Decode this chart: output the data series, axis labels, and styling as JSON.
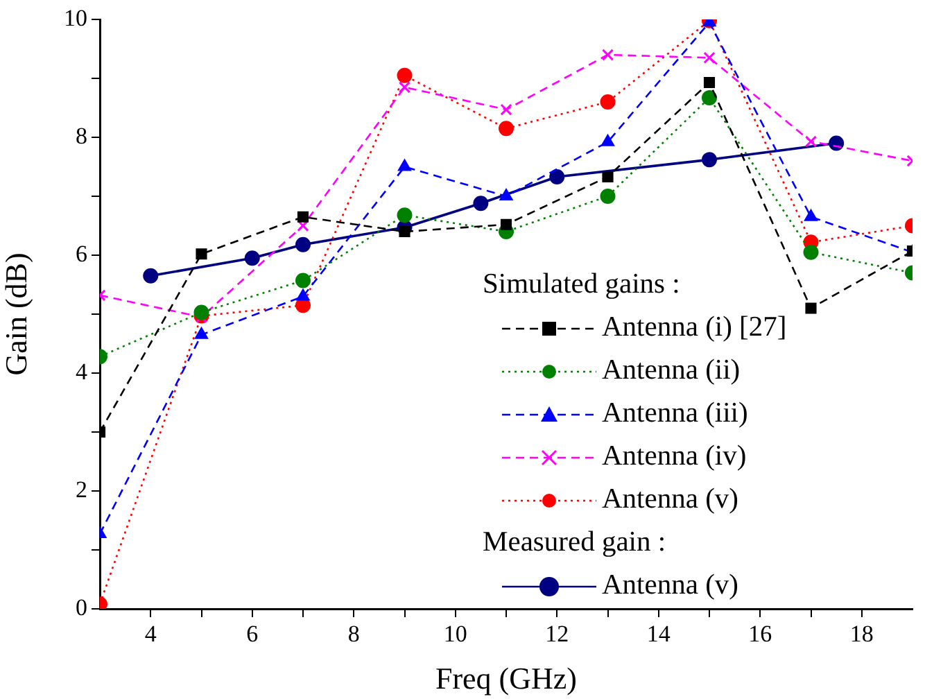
{
  "chart_data": {
    "type": "line",
    "xlabel": "Freq (GHz)",
    "ylabel": "Gain (dB)",
    "legend_title": "Simulated gains :",
    "annotations": [
      "Measured gain :"
    ],
    "xlim": [
      3,
      19
    ],
    "xticks": [
      {
        "value": 4,
        "label": "4"
      },
      {
        "value": 5,
        "label": null
      },
      {
        "value": 6,
        "label": "6"
      },
      {
        "value": 7,
        "label": null
      },
      {
        "value": 8,
        "label": "8"
      },
      {
        "value": 9,
        "label": null
      },
      {
        "value": 10,
        "label": "10"
      },
      {
        "value": 11,
        "label": null
      },
      {
        "value": 12,
        "label": "12"
      },
      {
        "value": 13,
        "label": null
      },
      {
        "value": 14,
        "label": "14"
      },
      {
        "value": 15,
        "label": null
      },
      {
        "value": 16,
        "label": "16"
      },
      {
        "value": 17,
        "label": null
      },
      {
        "value": 18,
        "label": "18"
      }
    ],
    "ylim": [
      0,
      10
    ],
    "yticks": [
      0,
      {
        "value": 1,
        "label": null
      },
      2,
      {
        "value": 3,
        "label": null
      },
      4,
      {
        "value": 5,
        "label": null
      },
      6,
      {
        "value": 7,
        "label": null
      },
      8,
      {
        "value": 9,
        "label": null
      },
      10
    ],
    "grid": false,
    "legend": "bottom right",
    "series": [
      {
        "name": "Antenna (i) [27]",
        "color": "#000000",
        "marker": "square",
        "line_style": "dashed",
        "x": [
          3,
          5,
          7,
          9,
          11,
          13,
          15,
          17,
          19
        ],
        "values": [
          3.0,
          6.02,
          6.65,
          6.4,
          6.52,
          7.33,
          8.93,
          5.1,
          6.07
        ]
      },
      {
        "name": "Antenna (ii)",
        "color": "#008000",
        "marker": "circle",
        "line_style": "dotted",
        "x": [
          3,
          5,
          7,
          9,
          11,
          13,
          15,
          17,
          19
        ],
        "values": [
          4.28,
          5.03,
          5.57,
          6.68,
          6.4,
          7.0,
          8.67,
          6.05,
          5.7
        ]
      },
      {
        "name": "Antenna (iii)",
        "color": "#0000ff",
        "marker": "triangle",
        "line_style": "dashed",
        "x": [
          3,
          5,
          7,
          9,
          11,
          13,
          15,
          17,
          19
        ],
        "values": [
          1.27,
          4.65,
          5.3,
          7.5,
          7.0,
          7.92,
          9.95,
          6.65,
          6.05
        ]
      },
      {
        "name": "Antenna (iv)",
        "color": "#ff00ff",
        "marker": "cross",
        "line_style": "dashed",
        "x": [
          3,
          5,
          7,
          9,
          11,
          13,
          15,
          17,
          19
        ],
        "values": [
          5.32,
          4.95,
          6.5,
          8.85,
          8.47,
          9.4,
          9.35,
          7.93,
          7.6
        ]
      },
      {
        "name": "Antenna (v)",
        "color": "#ff0000",
        "marker": "circle",
        "line_style": "dotted",
        "x": [
          3,
          5,
          7,
          9,
          11,
          13,
          15,
          17,
          19
        ],
        "values": [
          0.08,
          4.97,
          5.15,
          9.05,
          8.15,
          8.6,
          9.98,
          6.22,
          6.5
        ]
      },
      {
        "name": "Antenna (v)",
        "color": "#000080",
        "marker": "circle",
        "line_style": "solid",
        "x": [
          4,
          6,
          7,
          9,
          10.5,
          12,
          15,
          17.5
        ],
        "values": [
          5.65,
          5.95,
          6.18,
          6.47,
          6.88,
          7.33,
          7.62,
          7.9
        ]
      }
    ]
  }
}
